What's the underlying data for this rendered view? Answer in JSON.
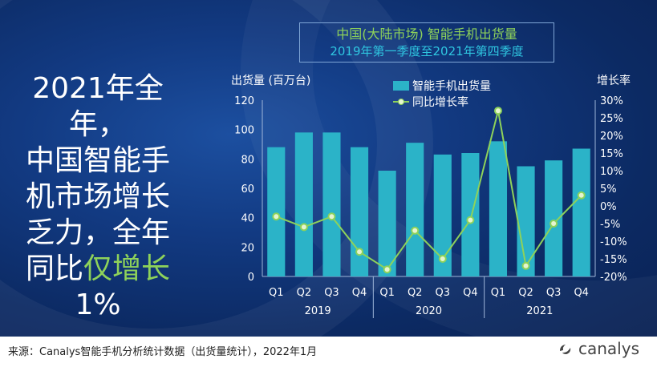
{
  "headline": {
    "line1": "2021年全年，",
    "line2": "中国智能手",
    "line3": "机市场增长",
    "line4": "乏力，全年",
    "line5_pre": "同比",
    "line5_hl": "仅增长",
    "line6": "1%"
  },
  "title": {
    "line1": "中国(大陆市场) 智能手机出货量",
    "line2": "2019年第一季度至2021年第四季度"
  },
  "footer": {
    "source": "来源：Canalys智能手机分析统计数据（出货量统计），2022年1月",
    "logo_text": "canalys"
  },
  "colors": {
    "bar": "#2bb3c8",
    "line": "#8ed25a",
    "marker_fill": "#e6f5d0",
    "text": "#ffffff",
    "axis": "#9fb6d9"
  },
  "chart_data": {
    "type": "bar",
    "categories": [
      "Q1",
      "Q2",
      "Q3",
      "Q4",
      "Q1",
      "Q2",
      "Q3",
      "Q4",
      "Q1",
      "Q2",
      "Q3",
      "Q4"
    ],
    "groups": [
      {
        "label": "2019",
        "span": [
          0,
          3
        ]
      },
      {
        "label": "2020",
        "span": [
          4,
          7
        ]
      },
      {
        "label": "2021",
        "span": [
          8,
          11
        ]
      }
    ],
    "ylabel": "出货量 (百万台)",
    "y2label": "增长率",
    "ylim": [
      0,
      120
    ],
    "yticks": [
      "0",
      "20",
      "40",
      "60",
      "80",
      "100",
      "120"
    ],
    "y2lim": [
      -20,
      30
    ],
    "y2ticks": [
      "-20%",
      "-15%",
      "-10%",
      "-5%",
      "0%",
      "5%",
      "10%",
      "15%",
      "20%",
      "25%",
      "30%"
    ],
    "series": [
      {
        "name": "智能手机出货量",
        "type": "bar",
        "axis": "left",
        "values": [
          88,
          98,
          98,
          88,
          72,
          91,
          83,
          84,
          92,
          75,
          79,
          87
        ]
      },
      {
        "name": "同比增长率",
        "type": "line",
        "axis": "right",
        "values": [
          -3,
          -6,
          -3,
          -13,
          -18,
          -7,
          -15,
          -4,
          27,
          -17,
          -5,
          3
        ]
      }
    ],
    "legend_position": "top-center",
    "grid": false
  }
}
